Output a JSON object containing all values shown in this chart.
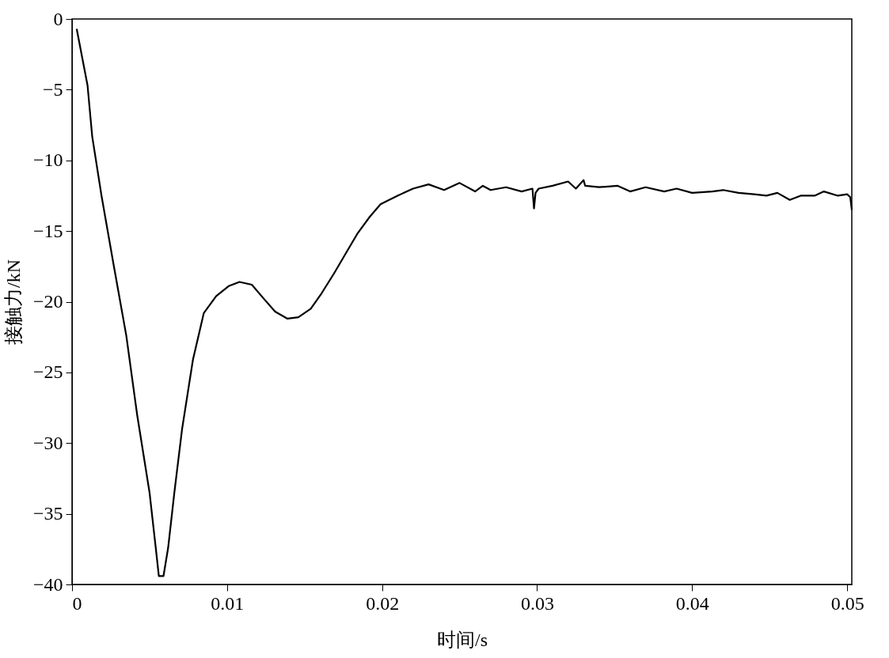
{
  "chart_data": {
    "type": "line",
    "xlabel": "时间/s",
    "ylabel": "接触力/kN",
    "xlim": [
      0,
      0.0503
    ],
    "ylim": [
      -40,
      0
    ],
    "xticks": [
      0,
      0.01,
      0.02,
      0.03,
      0.04,
      0.05
    ],
    "yticks": [
      0,
      -5,
      -10,
      -15,
      -20,
      -25,
      -30,
      -35,
      -40
    ],
    "grid": false,
    "marker": "none",
    "line_style": "solid",
    "series": [
      {
        "color": "#000000",
        "x": [
          0.0003,
          0.001,
          0.0013,
          0.0019,
          0.0027,
          0.0035,
          0.0042,
          0.005,
          0.0054,
          0.0056,
          0.0059,
          0.0062,
          0.0066,
          0.0071,
          0.0078,
          0.0085,
          0.0093,
          0.0101,
          0.0108,
          0.0116,
          0.0123,
          0.0131,
          0.0139,
          0.0146,
          0.0154,
          0.0161,
          0.0169,
          0.0177,
          0.0184,
          0.0192,
          0.0199,
          0.021,
          0.022,
          0.023,
          0.024,
          0.025,
          0.026,
          0.0265,
          0.027,
          0.028,
          0.029,
          0.0297,
          0.0298,
          0.0299,
          0.0301,
          0.031,
          0.032,
          0.0325,
          0.033,
          0.0331,
          0.034,
          0.0352,
          0.036,
          0.037,
          0.0382,
          0.039,
          0.04,
          0.0413,
          0.042,
          0.043,
          0.044,
          0.0448,
          0.0455,
          0.0463,
          0.047,
          0.0479,
          0.0485,
          0.0494,
          0.05,
          0.0502,
          0.0503
        ],
        "values": [
          -0.7,
          -4.7,
          -8.3,
          -12.5,
          -17.5,
          -22.4,
          -28,
          -33.5,
          -37.4,
          -39.4,
          -39.4,
          -37.4,
          -33.5,
          -29,
          -24.1,
          -20.8,
          -19.6,
          -18.9,
          -18.6,
          -18.8,
          -19.7,
          -20.7,
          -21.2,
          -21.1,
          -20.5,
          -19.4,
          -18,
          -16.5,
          -15.2,
          -14,
          -13.1,
          -12.5,
          -12.0,
          -11.7,
          -12.1,
          -11.6,
          -12.2,
          -11.8,
          -12.1,
          -11.9,
          -12.2,
          -12.0,
          -13.4,
          -12.3,
          -12.0,
          -11.8,
          -11.5,
          -12.0,
          -11.4,
          -11.8,
          -11.9,
          -11.8,
          -12.2,
          -11.9,
          -12.2,
          -12.0,
          -12.3,
          -12.2,
          -12.1,
          -12.3,
          -12.4,
          -12.5,
          -12.3,
          -12.8,
          -12.5,
          -12.5,
          -12.2,
          -12.5,
          -12.4,
          -12.6,
          -13.5
        ]
      }
    ]
  }
}
